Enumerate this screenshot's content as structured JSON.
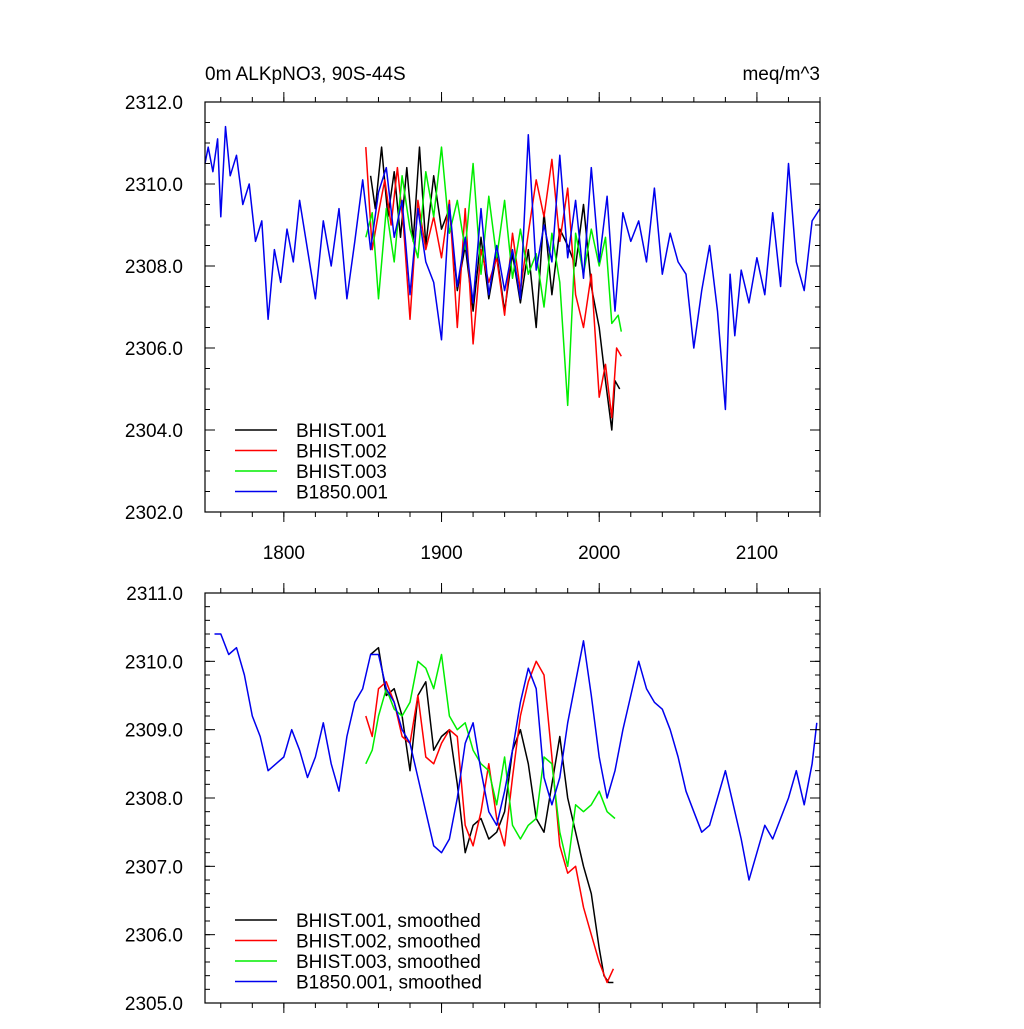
{
  "chart_data": [
    {
      "type": "line",
      "title_left": "0m ALKpNO3, 90S-44S",
      "title_right": "meq/m^3",
      "xlim": [
        1750,
        2140
      ],
      "ylim": [
        2302.0,
        2312.0
      ],
      "x_ticks": [
        1800,
        1900,
        2000,
        2100
      ],
      "x_tick_labels": [
        "1800",
        "1900",
        "2000",
        "2100"
      ],
      "y_ticks": [
        2302.0,
        2304.0,
        2306.0,
        2308.0,
        2310.0,
        2312.0
      ],
      "y_tick_labels": [
        "2302.0",
        "2304.0",
        "2306.0",
        "2308.0",
        "2310.0",
        "2312.0"
      ],
      "legend_position": "bottom-left",
      "series": [
        {
          "name": "BHIST.001",
          "color": "#000000",
          "x": [
            1855,
            1858,
            1862,
            1866,
            1870,
            1874,
            1878,
            1882,
            1886,
            1890,
            1895,
            1900,
            1905,
            1910,
            1915,
            1920,
            1925,
            1930,
            1935,
            1940,
            1945,
            1950,
            1955,
            1960,
            1965,
            1970,
            1975,
            1980,
            1985,
            1990,
            1995,
            2000,
            2004,
            2008,
            2010,
            2013
          ],
          "values": [
            2310.2,
            2309.4,
            2310.9,
            2309.2,
            2310.3,
            2308.7,
            2310.4,
            2308.6,
            2310.9,
            2308.5,
            2310.2,
            2308.9,
            2309.4,
            2307.4,
            2308.5,
            2306.9,
            2308.7,
            2307.2,
            2308.3,
            2306.9,
            2308.3,
            2307.1,
            2308.4,
            2306.5,
            2309.3,
            2307.3,
            2308.9,
            2308.5,
            2308.0,
            2309.5,
            2307.5,
            2306.5,
            2305.2,
            2304.0,
            2305.2,
            2305.0
          ]
        },
        {
          "name": "BHIST.002",
          "color": "#ff0000",
          "x": [
            1852,
            1856,
            1860,
            1864,
            1868,
            1872,
            1876,
            1880,
            1885,
            1890,
            1895,
            1900,
            1905,
            1910,
            1915,
            1920,
            1925,
            1930,
            1935,
            1940,
            1945,
            1950,
            1955,
            1960,
            1965,
            1970,
            1975,
            1980,
            1985,
            1990,
            1995,
            2000,
            2004,
            2008,
            2011,
            2014
          ],
          "values": [
            2310.9,
            2308.4,
            2309.3,
            2310.1,
            2309.0,
            2310.4,
            2308.9,
            2306.7,
            2309.6,
            2308.4,
            2309.2,
            2308.2,
            2309.6,
            2306.5,
            2309.4,
            2306.1,
            2308.4,
            2307.6,
            2308.2,
            2306.8,
            2308.8,
            2307.4,
            2308.8,
            2310.1,
            2309.2,
            2310.6,
            2308.6,
            2309.9,
            2307.3,
            2306.5,
            2307.8,
            2304.8,
            2305.6,
            2304.3,
            2306.0,
            2305.8
          ]
        },
        {
          "name": "BHIST.003",
          "color": "#00ee00",
          "x": [
            1852,
            1856,
            1860,
            1865,
            1870,
            1875,
            1880,
            1885,
            1890,
            1895,
            1900,
            1905,
            1910,
            1915,
            1920,
            1925,
            1930,
            1935,
            1940,
            1945,
            1950,
            1955,
            1960,
            1965,
            1970,
            1975,
            1980,
            1985,
            1990,
            1995,
            2000,
            2004,
            2008,
            2012,
            2014
          ],
          "values": [
            2308.7,
            2309.3,
            2307.2,
            2309.4,
            2308.1,
            2310.2,
            2308.9,
            2308.2,
            2310.3,
            2309.2,
            2310.9,
            2308.8,
            2309.6,
            2308.4,
            2310.5,
            2307.8,
            2309.7,
            2308.2,
            2309.6,
            2307.7,
            2308.9,
            2307.8,
            2308.3,
            2307.0,
            2308.8,
            2307.6,
            2304.6,
            2308.8,
            2307.8,
            2308.9,
            2308.0,
            2308.7,
            2306.6,
            2306.8,
            2306.4
          ]
        },
        {
          "name": "B1850.001",
          "color": "#0000ee",
          "x": [
            1750,
            1752,
            1755,
            1758,
            1760,
            1763,
            1766,
            1770,
            1774,
            1778,
            1782,
            1786,
            1790,
            1794,
            1798,
            1802,
            1806,
            1810,
            1815,
            1820,
            1825,
            1830,
            1835,
            1840,
            1845,
            1850,
            1855,
            1860,
            1865,
            1870,
            1875,
            1880,
            1885,
            1890,
            1895,
            1900,
            1905,
            1910,
            1915,
            1920,
            1925,
            1930,
            1935,
            1940,
            1945,
            1950,
            1955,
            1960,
            1965,
            1970,
            1975,
            1980,
            1985,
            1990,
            1995,
            2000,
            2005,
            2010,
            2015,
            2020,
            2025,
            2030,
            2035,
            2040,
            2045,
            2050,
            2055,
            2060,
            2065,
            2070,
            2075,
            2080,
            2083,
            2086,
            2090,
            2095,
            2100,
            2105,
            2110,
            2115,
            2120,
            2125,
            2130,
            2135,
            2140
          ],
          "values": [
            2310.5,
            2310.9,
            2310.3,
            2311.1,
            2309.2,
            2311.4,
            2310.2,
            2310.7,
            2309.5,
            2310.0,
            2308.6,
            2309.1,
            2306.7,
            2308.4,
            2307.6,
            2308.9,
            2308.1,
            2309.6,
            2308.4,
            2307.2,
            2309.1,
            2308.0,
            2309.4,
            2307.2,
            2308.6,
            2310.1,
            2308.4,
            2309.8,
            2310.4,
            2308.7,
            2309.6,
            2307.3,
            2309.4,
            2308.1,
            2307.6,
            2306.2,
            2309.5,
            2307.5,
            2308.7,
            2307.1,
            2309.4,
            2307.3,
            2308.5,
            2307.4,
            2308.4,
            2307.2,
            2311.2,
            2307.9,
            2309.0,
            2308.1,
            2310.7,
            2308.2,
            2309.6,
            2307.7,
            2310.4,
            2308.1,
            2309.7,
            2306.9,
            2309.3,
            2308.6,
            2309.1,
            2308.1,
            2309.9,
            2307.8,
            2308.8,
            2308.1,
            2307.8,
            2306.0,
            2307.4,
            2308.5,
            2306.9,
            2304.5,
            2307.8,
            2306.3,
            2307.9,
            2307.1,
            2308.2,
            2307.3,
            2309.3,
            2307.5,
            2310.5,
            2308.1,
            2307.4,
            2309.1,
            2309.4
          ]
        }
      ]
    },
    {
      "type": "line",
      "xlim": [
        1750,
        2140
      ],
      "ylim": [
        2305.0,
        2311.0
      ],
      "x_ticks": [
        1800,
        1900,
        2000,
        2100
      ],
      "y_ticks": [
        2305.0,
        2306.0,
        2307.0,
        2308.0,
        2309.0,
        2310.0,
        2311.0
      ],
      "y_tick_labels": [
        "2305.0",
        "2306.0",
        "2307.0",
        "2308.0",
        "2309.0",
        "2310.0",
        "2311.0"
      ],
      "legend_position": "bottom-left",
      "series": [
        {
          "name": "BHIST.001, smoothed",
          "color": "#000000",
          "x": [
            1855,
            1860,
            1865,
            1870,
            1875,
            1880,
            1885,
            1890,
            1895,
            1900,
            1905,
            1910,
            1915,
            1920,
            1925,
            1930,
            1935,
            1940,
            1945,
            1950,
            1955,
            1960,
            1965,
            1970,
            1975,
            1980,
            1985,
            1990,
            1995,
            2000,
            2003,
            2006,
            2009
          ],
          "values": [
            2310.1,
            2310.2,
            2309.5,
            2309.6,
            2309.2,
            2308.4,
            2309.5,
            2309.7,
            2308.7,
            2308.9,
            2309.0,
            2308.2,
            2307.2,
            2307.6,
            2307.7,
            2307.4,
            2307.5,
            2307.8,
            2308.7,
            2309.0,
            2308.5,
            2307.7,
            2307.5,
            2308.2,
            2308.9,
            2308.0,
            2307.5,
            2307.0,
            2306.6,
            2305.8,
            2305.4,
            2305.3,
            2305.3
          ]
        },
        {
          "name": "BHIST.002, smoothed",
          "color": "#ff0000",
          "x": [
            1852,
            1856,
            1860,
            1865,
            1870,
            1875,
            1880,
            1885,
            1890,
            1895,
            1900,
            1905,
            1910,
            1915,
            1920,
            1925,
            1930,
            1935,
            1940,
            1945,
            1950,
            1955,
            1960,
            1965,
            1970,
            1975,
            1980,
            1985,
            1990,
            1995,
            2000,
            2005,
            2009
          ],
          "values": [
            2309.2,
            2308.9,
            2309.6,
            2309.7,
            2309.4,
            2308.9,
            2308.8,
            2309.5,
            2308.6,
            2308.5,
            2308.8,
            2309.0,
            2308.9,
            2307.6,
            2307.3,
            2307.8,
            2308.5,
            2307.7,
            2307.3,
            2308.3,
            2309.2,
            2309.7,
            2310.0,
            2309.8,
            2308.6,
            2307.3,
            2306.9,
            2307.0,
            2306.4,
            2306.0,
            2305.6,
            2305.3,
            2305.5
          ]
        },
        {
          "name": "BHIST.003, smoothed",
          "color": "#00ee00",
          "x": [
            1852,
            1856,
            1860,
            1865,
            1870,
            1875,
            1880,
            1885,
            1890,
            1895,
            1900,
            1905,
            1910,
            1915,
            1920,
            1925,
            1930,
            1935,
            1940,
            1945,
            1950,
            1955,
            1960,
            1965,
            1970,
            1975,
            1980,
            1985,
            1990,
            1995,
            2000,
            2005,
            2010
          ],
          "values": [
            2308.5,
            2308.7,
            2309.2,
            2309.6,
            2309.3,
            2309.2,
            2309.4,
            2310.0,
            2309.9,
            2309.6,
            2310.1,
            2309.2,
            2309.0,
            2309.1,
            2308.7,
            2308.5,
            2308.4,
            2307.9,
            2308.6,
            2307.6,
            2307.4,
            2307.6,
            2307.7,
            2308.6,
            2308.5,
            2307.5,
            2307.0,
            2307.9,
            2307.8,
            2307.9,
            2308.1,
            2307.8,
            2307.7
          ]
        },
        {
          "name": "B1850.001, smoothed",
          "color": "#0000ee",
          "x": [
            1756,
            1760,
            1765,
            1770,
            1775,
            1780,
            1785,
            1790,
            1795,
            1800,
            1805,
            1810,
            1815,
            1820,
            1825,
            1830,
            1835,
            1840,
            1845,
            1850,
            1855,
            1860,
            1865,
            1870,
            1875,
            1880,
            1885,
            1890,
            1895,
            1900,
            1905,
            1910,
            1915,
            1920,
            1925,
            1930,
            1935,
            1940,
            1945,
            1950,
            1955,
            1960,
            1965,
            1970,
            1975,
            1980,
            1985,
            1990,
            1995,
            2000,
            2005,
            2010,
            2015,
            2020,
            2025,
            2030,
            2035,
            2040,
            2045,
            2050,
            2055,
            2060,
            2065,
            2070,
            2075,
            2080,
            2085,
            2090,
            2095,
            2100,
            2105,
            2110,
            2115,
            2120,
            2125,
            2130,
            2135,
            2138
          ],
          "values": [
            2310.4,
            2310.4,
            2310.1,
            2310.2,
            2309.8,
            2309.2,
            2308.9,
            2308.4,
            2308.5,
            2308.6,
            2309.0,
            2308.7,
            2308.3,
            2308.6,
            2309.1,
            2308.5,
            2308.1,
            2308.9,
            2309.4,
            2309.6,
            2310.1,
            2310.1,
            2309.6,
            2309.4,
            2309.0,
            2308.8,
            2308.3,
            2307.8,
            2307.3,
            2307.2,
            2307.4,
            2308.0,
            2308.8,
            2309.1,
            2308.4,
            2307.8,
            2307.6,
            2308.1,
            2308.7,
            2309.4,
            2309.9,
            2309.6,
            2308.3,
            2307.9,
            2308.3,
            2309.1,
            2309.7,
            2310.3,
            2309.5,
            2308.6,
            2308.0,
            2308.4,
            2309.0,
            2309.5,
            2310.0,
            2309.6,
            2309.4,
            2309.3,
            2309.0,
            2308.6,
            2308.1,
            2307.8,
            2307.5,
            2307.6,
            2308.0,
            2308.4,
            2307.9,
            2307.4,
            2306.8,
            2307.2,
            2307.6,
            2307.4,
            2307.7,
            2308.0,
            2308.4,
            2307.9,
            2308.5,
            2309.1
          ]
        }
      ]
    }
  ]
}
